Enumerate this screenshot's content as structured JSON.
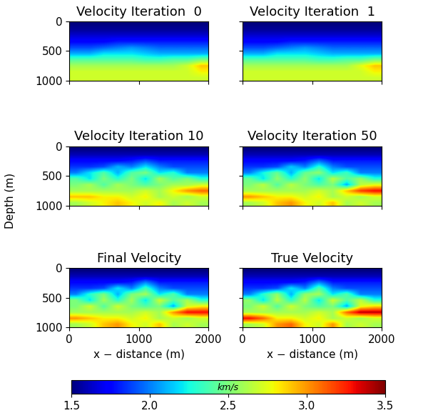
{
  "chart_data": [
    {
      "type": "heatmap",
      "title": "Velocity Iteration  0",
      "xlim": [
        0,
        2000
      ],
      "ylim": [
        1000,
        0
      ],
      "xticks": [
        0,
        1000,
        2000
      ],
      "yticks": [
        0,
        500,
        1000
      ],
      "tick_labels": "y",
      "cells": [
        [
          1.5,
          1.5,
          1.5,
          1.5,
          1.5,
          1.5,
          1.5,
          1.5,
          1.5,
          1.5
        ],
        [
          1.55,
          1.55,
          1.55,
          1.55,
          1.55,
          1.55,
          1.55,
          1.55,
          1.55,
          1.55
        ],
        [
          1.65,
          1.65,
          1.65,
          1.65,
          1.65,
          1.65,
          1.65,
          1.65,
          1.65,
          1.65
        ],
        [
          1.75,
          1.75,
          1.75,
          1.8,
          1.8,
          1.8,
          1.8,
          1.8,
          1.8,
          1.8
        ],
        [
          1.9,
          1.9,
          1.95,
          2.0,
          2.05,
          2.0,
          1.95,
          1.95,
          1.95,
          1.95
        ],
        [
          2.1,
          2.1,
          2.2,
          2.2,
          2.2,
          2.15,
          2.1,
          2.1,
          2.1,
          2.1
        ],
        [
          2.4,
          2.4,
          2.4,
          2.4,
          2.4,
          2.35,
          2.35,
          2.4,
          2.4,
          2.5
        ],
        [
          2.6,
          2.6,
          2.6,
          2.6,
          2.6,
          2.6,
          2.6,
          2.6,
          2.7,
          2.9
        ],
        [
          2.7,
          2.7,
          2.7,
          2.7,
          2.7,
          2.7,
          2.7,
          2.7,
          2.7,
          2.8
        ],
        [
          2.7,
          2.7,
          2.7,
          2.7,
          2.7,
          2.7,
          2.7,
          2.7,
          2.7,
          2.7
        ]
      ]
    },
    {
      "type": "heatmap",
      "title": "Velocity Iteration  1",
      "xlim": [
        0,
        2000
      ],
      "ylim": [
        1000,
        0
      ],
      "xticks": [
        0,
        1000,
        2000
      ],
      "yticks": [
        0,
        500,
        1000
      ],
      "tick_labels": false,
      "cells": [
        [
          1.5,
          1.5,
          1.5,
          1.5,
          1.5,
          1.5,
          1.5,
          1.5,
          1.5,
          1.5
        ],
        [
          1.55,
          1.55,
          1.55,
          1.55,
          1.55,
          1.55,
          1.55,
          1.55,
          1.55,
          1.55
        ],
        [
          1.65,
          1.65,
          1.65,
          1.65,
          1.65,
          1.65,
          1.65,
          1.65,
          1.65,
          1.65
        ],
        [
          1.75,
          1.75,
          1.75,
          1.8,
          1.8,
          1.8,
          1.8,
          1.8,
          1.8,
          1.8
        ],
        [
          1.9,
          1.9,
          1.95,
          2.0,
          2.05,
          2.0,
          1.95,
          1.95,
          1.95,
          1.95
        ],
        [
          2.1,
          2.1,
          2.2,
          2.2,
          2.2,
          2.15,
          2.1,
          2.1,
          2.1,
          2.1
        ],
        [
          2.4,
          2.4,
          2.4,
          2.4,
          2.4,
          2.35,
          2.35,
          2.4,
          2.4,
          2.5
        ],
        [
          2.6,
          2.6,
          2.6,
          2.6,
          2.6,
          2.6,
          2.6,
          2.6,
          2.75,
          2.9
        ],
        [
          2.7,
          2.7,
          2.7,
          2.7,
          2.7,
          2.7,
          2.7,
          2.7,
          2.7,
          2.8
        ],
        [
          2.7,
          2.7,
          2.7,
          2.7,
          2.7,
          2.7,
          2.7,
          2.7,
          2.7,
          2.7
        ]
      ]
    },
    {
      "type": "heatmap",
      "title": "Velocity Iteration 10",
      "xlim": [
        0,
        2000
      ],
      "ylim": [
        1000,
        0
      ],
      "xticks": [
        0,
        1000,
        2000
      ],
      "yticks": [
        0,
        500,
        1000
      ],
      "tick_labels": "y",
      "cells": [
        [
          1.5,
          1.5,
          1.5,
          1.5,
          1.5,
          1.5,
          1.5,
          1.5,
          1.5,
          1.5
        ],
        [
          1.6,
          1.6,
          1.6,
          1.6,
          1.6,
          1.6,
          1.6,
          1.6,
          1.6,
          1.6
        ],
        [
          1.75,
          1.75,
          1.75,
          1.75,
          1.8,
          1.9,
          1.8,
          1.8,
          1.8,
          1.8
        ],
        [
          1.85,
          1.85,
          1.9,
          2.1,
          2.0,
          2.2,
          2.0,
          1.9,
          1.9,
          1.9
        ],
        [
          2.0,
          2.2,
          2.4,
          2.1,
          2.4,
          2.5,
          2.2,
          2.3,
          2.0,
          2.0
        ],
        [
          2.4,
          2.2,
          2.5,
          2.3,
          2.5,
          2.2,
          2.6,
          2.4,
          2.5,
          2.3
        ],
        [
          2.5,
          2.6,
          2.4,
          2.6,
          2.5,
          2.4,
          2.5,
          2.6,
          2.6,
          2.7
        ],
        [
          2.6,
          2.6,
          2.6,
          2.6,
          2.6,
          2.7,
          2.6,
          2.8,
          3.0,
          3.1
        ],
        [
          2.9,
          2.9,
          2.8,
          2.8,
          2.7,
          2.8,
          2.6,
          2.7,
          2.6,
          2.7
        ],
        [
          2.6,
          2.7,
          2.8,
          2.9,
          2.8,
          2.7,
          2.8,
          2.6,
          2.7,
          2.6
        ]
      ]
    },
    {
      "type": "heatmap",
      "title": "Velocity Iteration 50",
      "xlim": [
        0,
        2000
      ],
      "ylim": [
        1000,
        0
      ],
      "xticks": [
        0,
        1000,
        2000
      ],
      "yticks": [
        0,
        500,
        1000
      ],
      "tick_labels": false,
      "cells": [
        [
          1.5,
          1.5,
          1.5,
          1.5,
          1.5,
          1.5,
          1.5,
          1.5,
          1.5,
          1.5
        ],
        [
          1.6,
          1.6,
          1.6,
          1.6,
          1.6,
          1.6,
          1.6,
          1.6,
          1.6,
          1.6
        ],
        [
          1.75,
          1.75,
          1.75,
          1.75,
          1.8,
          1.95,
          1.8,
          1.8,
          1.8,
          1.8
        ],
        [
          1.85,
          1.85,
          1.9,
          2.15,
          2.0,
          2.3,
          2.0,
          1.9,
          1.9,
          1.9
        ],
        [
          2.0,
          2.25,
          2.45,
          2.1,
          2.45,
          2.55,
          2.2,
          2.35,
          2.0,
          2.0
        ],
        [
          2.45,
          2.2,
          2.55,
          2.3,
          2.55,
          2.2,
          2.65,
          2.4,
          2.55,
          2.3
        ],
        [
          2.5,
          2.65,
          2.4,
          2.65,
          2.5,
          2.4,
          2.5,
          2.1,
          2.65,
          2.75
        ],
        [
          2.6,
          2.6,
          2.6,
          2.6,
          2.6,
          2.7,
          2.6,
          2.9,
          3.2,
          3.3
        ],
        [
          3.0,
          2.9,
          2.8,
          2.8,
          2.7,
          2.8,
          2.6,
          2.7,
          2.6,
          2.7
        ],
        [
          2.6,
          2.7,
          2.9,
          3.0,
          2.8,
          2.7,
          2.9,
          2.6,
          2.7,
          2.6
        ]
      ]
    },
    {
      "type": "heatmap",
      "title": "Final Velocity",
      "xlim": [
        0,
        2000
      ],
      "ylim": [
        1000,
        0
      ],
      "xticks": [
        0,
        1000,
        2000
      ],
      "yticks": [
        0,
        500,
        1000
      ],
      "xlabel": "x − distance (m)",
      "tick_labels": true,
      "cells": [
        [
          1.5,
          1.5,
          1.5,
          1.5,
          1.5,
          1.5,
          1.5,
          1.5,
          1.5,
          1.5
        ],
        [
          1.6,
          1.6,
          1.6,
          1.6,
          1.6,
          1.6,
          1.6,
          1.6,
          1.6,
          1.6
        ],
        [
          1.75,
          1.75,
          1.75,
          1.75,
          1.8,
          2.0,
          1.8,
          1.8,
          1.8,
          1.8
        ],
        [
          1.85,
          1.85,
          1.9,
          2.2,
          2.0,
          2.35,
          2.0,
          1.9,
          1.9,
          1.9
        ],
        [
          2.0,
          2.3,
          2.5,
          2.1,
          2.5,
          2.6,
          2.2,
          2.4,
          2.0,
          2.0
        ],
        [
          2.5,
          2.2,
          2.6,
          2.3,
          2.6,
          2.2,
          2.7,
          2.4,
          2.6,
          2.3
        ],
        [
          2.5,
          2.7,
          2.4,
          2.7,
          2.5,
          2.4,
          2.5,
          2.1,
          2.7,
          2.8
        ],
        [
          2.6,
          2.6,
          2.6,
          2.6,
          2.6,
          2.7,
          2.6,
          3.0,
          3.3,
          3.3
        ],
        [
          3.0,
          2.9,
          2.8,
          2.8,
          2.7,
          2.8,
          2.6,
          2.7,
          2.6,
          2.7
        ],
        [
          2.6,
          2.7,
          2.9,
          3.0,
          2.8,
          2.7,
          2.9,
          2.6,
          2.7,
          2.6
        ]
      ]
    },
    {
      "type": "heatmap",
      "title": "True Velocity",
      "xlim": [
        0,
        2000
      ],
      "ylim": [
        1000,
        0
      ],
      "xticks": [
        0,
        1000,
        2000
      ],
      "yticks": [
        0,
        500,
        1000
      ],
      "xlabel": "x − distance (m)",
      "tick_labels": "x",
      "cells": [
        [
          1.5,
          1.5,
          1.5,
          1.5,
          1.5,
          1.5,
          1.5,
          1.5,
          1.5,
          1.5
        ],
        [
          1.6,
          1.6,
          1.6,
          1.6,
          1.6,
          1.6,
          1.6,
          1.6,
          1.6,
          1.6
        ],
        [
          1.75,
          1.75,
          1.75,
          1.75,
          1.8,
          2.0,
          1.8,
          1.8,
          1.8,
          1.8
        ],
        [
          1.85,
          1.85,
          1.9,
          2.2,
          2.0,
          2.4,
          2.0,
          1.9,
          1.9,
          1.9
        ],
        [
          2.0,
          2.3,
          2.55,
          2.1,
          2.55,
          2.6,
          2.2,
          2.4,
          2.0,
          2.0
        ],
        [
          2.55,
          2.2,
          2.65,
          2.3,
          2.65,
          2.2,
          2.7,
          2.4,
          2.65,
          2.3
        ],
        [
          2.5,
          2.7,
          2.4,
          2.7,
          2.5,
          2.4,
          2.5,
          2.1,
          2.75,
          2.85
        ],
        [
          2.6,
          2.6,
          2.6,
          2.6,
          2.6,
          2.7,
          2.6,
          3.1,
          3.4,
          3.4
        ],
        [
          3.3,
          3.1,
          2.8,
          2.8,
          2.7,
          2.8,
          2.6,
          2.7,
          2.6,
          2.7
        ],
        [
          2.6,
          2.7,
          3.0,
          3.1,
          2.8,
          2.7,
          3.0,
          2.6,
          2.7,
          2.6
        ]
      ]
    }
  ],
  "ylabel": "Depth (m)",
  "colorbar": {
    "label": "km/s",
    "range": [
      1.5,
      3.5
    ],
    "ticks": [
      1.5,
      2.0,
      2.5,
      3.0,
      3.5
    ]
  }
}
